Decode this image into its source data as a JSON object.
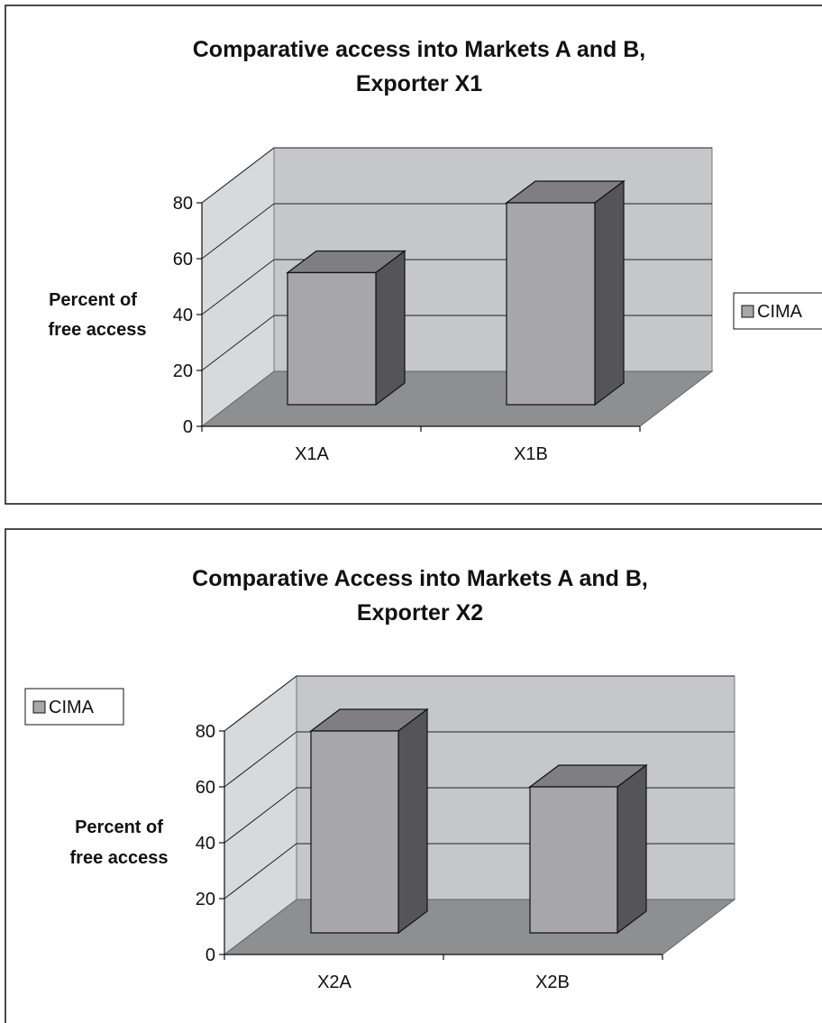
{
  "chart_data": [
    {
      "type": "bar",
      "title_lines": [
        "Comparative access into Markets A and B,",
        "Exporter X1"
      ],
      "ylabel_lines": [
        "Percent of",
        "free access"
      ],
      "xlabel": "",
      "categories": [
        "X1A",
        "X1B"
      ],
      "series": [
        {
          "name": "CIMA",
          "values": [
            55,
            80
          ]
        }
      ],
      "ylim": [
        0,
        80
      ],
      "yticks": [
        0,
        20,
        40,
        60,
        80
      ],
      "grid": true,
      "legend_position": "right",
      "colors": {
        "front": "#a7a7a9",
        "top": "#7f7f81",
        "side": "#555557",
        "wall": "#c6c7c9",
        "floor": "#8e8f91"
      }
    },
    {
      "type": "bar",
      "title_lines": [
        "Comparative Access into Markets A and B,",
        "Exporter X2"
      ],
      "ylabel_lines": [
        "Percent of",
        "free access"
      ],
      "xlabel": "",
      "categories": [
        "X2A",
        "X2B"
      ],
      "series": [
        {
          "name": "CIMA",
          "values": [
            80,
            60
          ]
        }
      ],
      "ylim": [
        0,
        80
      ],
      "yticks": [
        0,
        20,
        40,
        60,
        80
      ],
      "grid": true,
      "legend_position": "top-left",
      "colors": {
        "front": "#a7a7a9",
        "top": "#7f7f81",
        "side": "#555557",
        "wall": "#c6c7c9",
        "floor": "#8e8f91"
      }
    }
  ]
}
